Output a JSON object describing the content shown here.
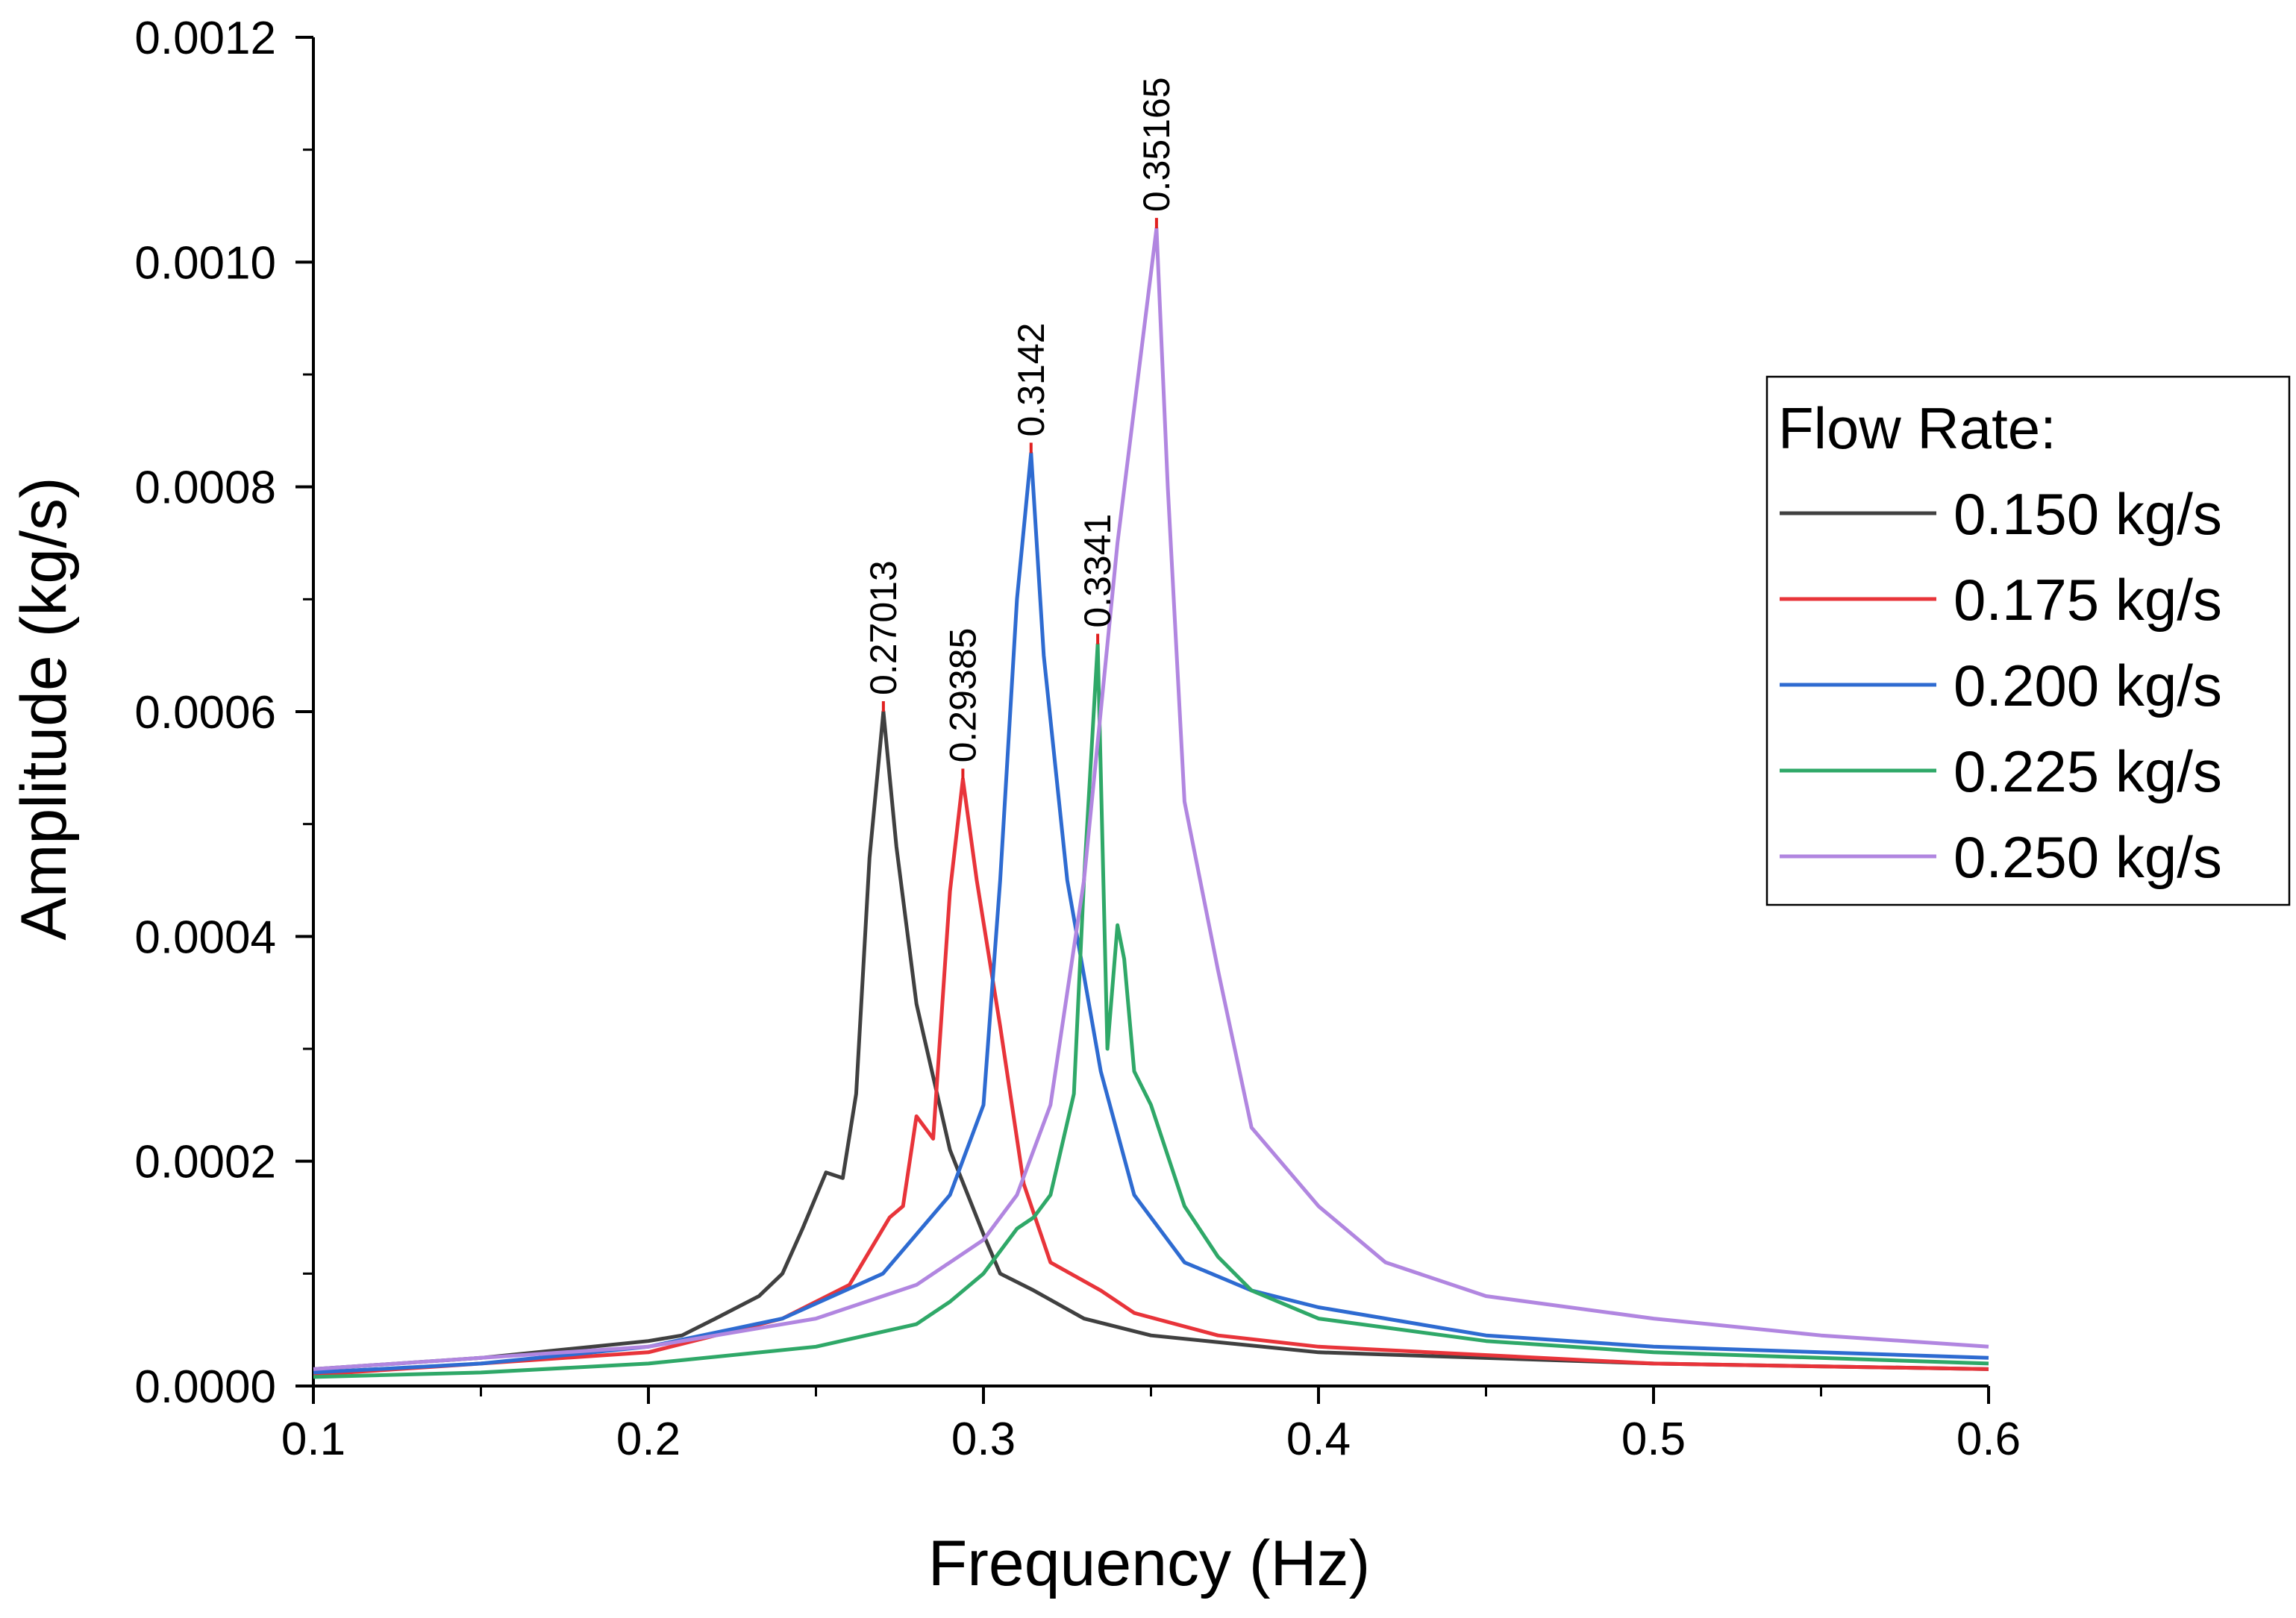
{
  "chart_data": {
    "type": "line",
    "title": "",
    "xlabel": "Frequency (Hz)",
    "ylabel": "Amplitude (kg/s)",
    "xlim": [
      0.1,
      0.6
    ],
    "ylim": [
      0,
      0.0012
    ],
    "x_ticks": [
      "0.1",
      "0.2",
      "0.3",
      "0.4",
      "0.5",
      "0.6"
    ],
    "x_tick_values": [
      0.1,
      0.2,
      0.3,
      0.4,
      0.5,
      0.6
    ],
    "y_ticks": [
      "0.0000",
      "0.0002",
      "0.0004",
      "0.0006",
      "0.0008",
      "0.0010",
      "0.0012"
    ],
    "y_tick_values": [
      0,
      0.0002,
      0.0004,
      0.0006,
      0.0008,
      0.001,
      0.0012
    ],
    "legend": {
      "title": "Flow Rate:",
      "position": "right"
    },
    "peak_marker_color": "#e02020",
    "series": [
      {
        "name": "0.150 kg/s",
        "color": "#404040",
        "peak_label": "0.27013",
        "peak": [
          0.27013,
          0.0006
        ],
        "x": [
          0.1,
          0.15,
          0.2,
          0.21,
          0.22,
          0.233,
          0.24,
          0.246,
          0.253,
          0.258,
          0.262,
          0.266,
          0.27013,
          0.274,
          0.28,
          0.29,
          0.3,
          0.305,
          0.315,
          0.33,
          0.35,
          0.4,
          0.5,
          0.6
        ],
        "y": [
          1.5e-05,
          2.5e-05,
          4e-05,
          4.5e-05,
          6e-05,
          8e-05,
          0.0001,
          0.00014,
          0.00019,
          0.000185,
          0.00026,
          0.00047,
          0.0006,
          0.00048,
          0.00034,
          0.00021,
          0.000135,
          0.0001,
          8.5e-05,
          6e-05,
          4.5e-05,
          3e-05,
          2e-05,
          1.5e-05
        ]
      },
      {
        "name": "0.175 kg/s",
        "color": "#e8343a",
        "peak_label": "0.29385",
        "peak": [
          0.29385,
          0.00054
        ],
        "x": [
          0.1,
          0.15,
          0.2,
          0.24,
          0.26,
          0.272,
          0.276,
          0.28,
          0.285,
          0.29,
          0.29385,
          0.298,
          0.305,
          0.312,
          0.32,
          0.335,
          0.345,
          0.37,
          0.4,
          0.5,
          0.6
        ],
        "y": [
          1e-05,
          2e-05,
          3e-05,
          6e-05,
          9e-05,
          0.00015,
          0.00016,
          0.00024,
          0.00022,
          0.00044,
          0.00054,
          0.00045,
          0.00032,
          0.00018,
          0.00011,
          8.5e-05,
          6.5e-05,
          4.5e-05,
          3.5e-05,
          2e-05,
          1.5e-05
        ]
      },
      {
        "name": "0.200 kg/s",
        "color": "#2e6bd1",
        "peak_label": "0.3142",
        "peak": [
          0.3142,
          0.00083
        ],
        "x": [
          0.1,
          0.15,
          0.2,
          0.24,
          0.27,
          0.29,
          0.3,
          0.305,
          0.31,
          0.3142,
          0.318,
          0.325,
          0.335,
          0.345,
          0.36,
          0.38,
          0.4,
          0.45,
          0.5,
          0.6
        ],
        "y": [
          1.2e-05,
          2e-05,
          3.5e-05,
          6e-05,
          0.0001,
          0.00017,
          0.00025,
          0.00045,
          0.0007,
          0.00083,
          0.00065,
          0.00045,
          0.00028,
          0.00017,
          0.00011,
          8.5e-05,
          7e-05,
          4.5e-05,
          3.5e-05,
          2.5e-05
        ]
      },
      {
        "name": "0.225 kg/s",
        "color": "#2fa868",
        "peak_label": "0.3341",
        "peak": [
          0.3341,
          0.00066
        ],
        "x": [
          0.1,
          0.15,
          0.2,
          0.25,
          0.28,
          0.29,
          0.3,
          0.31,
          0.315,
          0.32,
          0.327,
          0.33,
          0.3341,
          0.337,
          0.34,
          0.342,
          0.345,
          0.35,
          0.36,
          0.37,
          0.38,
          0.4,
          0.45,
          0.5,
          0.6
        ],
        "y": [
          8e-06,
          1.2e-05,
          2e-05,
          3.5e-05,
          5.5e-05,
          7.5e-05,
          0.0001,
          0.00014,
          0.00015,
          0.00017,
          0.00026,
          0.00045,
          0.00066,
          0.0003,
          0.00041,
          0.00038,
          0.00028,
          0.00025,
          0.00016,
          0.000115,
          8.5e-05,
          6e-05,
          4e-05,
          3e-05,
          2e-05
        ]
      },
      {
        "name": "0.250 kg/s",
        "color": "#b186e0",
        "peak_label": "0.35165",
        "peak": [
          0.35165,
          0.00103
        ],
        "x": [
          0.1,
          0.15,
          0.2,
          0.25,
          0.28,
          0.3,
          0.31,
          0.32,
          0.33,
          0.34,
          0.345,
          0.35165,
          0.355,
          0.36,
          0.37,
          0.38,
          0.4,
          0.42,
          0.45,
          0.5,
          0.55,
          0.6
        ],
        "y": [
          1.5e-05,
          2.5e-05,
          3.5e-05,
          6e-05,
          9e-05,
          0.00013,
          0.00017,
          0.00025,
          0.00045,
          0.00075,
          0.00087,
          0.00103,
          0.0008,
          0.00052,
          0.00037,
          0.00023,
          0.00016,
          0.00011,
          8e-05,
          6e-05,
          4.5e-05,
          3.5e-05
        ]
      }
    ]
  }
}
